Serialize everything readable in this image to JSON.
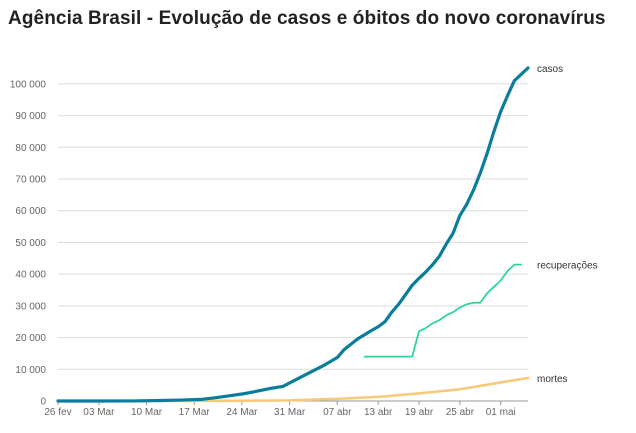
{
  "title": "Agência Brasil - Evolução de casos e óbitos do novo coronavírus",
  "chart_data": {
    "type": "line",
    "title": "Agência Brasil - Evolução de casos e óbitos do novo coronavírus",
    "xlabel": "",
    "ylabel": "",
    "x_start": "2020-02-26",
    "x_end": "2020-05-05",
    "ylim": [
      0,
      105000
    ],
    "grid": true,
    "legend": "inline labels at line ends",
    "y_ticks": [
      0,
      10000,
      20000,
      30000,
      40000,
      50000,
      60000,
      70000,
      80000,
      90000,
      100000
    ],
    "y_tick_labels": [
      "0",
      "10 000",
      "20 000",
      "30 000",
      "40 000",
      "50 000",
      "60 000",
      "70 000",
      "80 000",
      "90 000",
      "100 000"
    ],
    "x_ticks": [
      "2020-02-26",
      "2020-03-03",
      "2020-03-10",
      "2020-03-17",
      "2020-03-24",
      "2020-03-31",
      "2020-04-07",
      "2020-04-13",
      "2020-04-19",
      "2020-04-25",
      "2020-05-01"
    ],
    "x_tick_labels": [
      "26 fev",
      "03 Mar",
      "10 Mar",
      "17 Mar",
      "24 Mar",
      "31 Mar",
      "07 abr",
      "13 abr",
      "19 abr",
      "25 abr",
      "01 mai"
    ],
    "series": [
      {
        "name": "casos",
        "color": "#0a7c9c",
        "x": [
          "2020-02-26",
          "2020-03-03",
          "2020-03-08",
          "2020-03-12",
          "2020-03-15",
          "2020-03-18",
          "2020-03-20",
          "2020-03-22",
          "2020-03-24",
          "2020-03-26",
          "2020-03-28",
          "2020-03-30",
          "2020-04-01",
          "2020-04-03",
          "2020-04-05",
          "2020-04-07",
          "2020-04-08",
          "2020-04-10",
          "2020-04-12",
          "2020-04-13",
          "2020-04-14",
          "2020-04-15",
          "2020-04-16",
          "2020-04-17",
          "2020-04-18",
          "2020-04-19",
          "2020-04-20",
          "2020-04-21",
          "2020-04-22",
          "2020-04-23",
          "2020-04-24",
          "2020-04-25",
          "2020-04-26",
          "2020-04-27",
          "2020-04-28",
          "2020-04-29",
          "2020-04-30",
          "2020-05-01",
          "2020-05-02",
          "2020-05-03",
          "2020-05-04",
          "2020-05-05"
        ],
        "values": [
          0,
          2,
          20,
          150,
          300,
          500,
          1000,
          1600,
          2200,
          3000,
          3900,
          4600,
          6800,
          9000,
          11200,
          13700,
          16200,
          19600,
          22200,
          23400,
          25000,
          28000,
          30500,
          33500,
          36500,
          38700,
          40700,
          43000,
          45700,
          49500,
          52900,
          58500,
          62000,
          66500,
          71900,
          78100,
          85000,
          91300,
          96300,
          101000,
          103000,
          105000
        ]
      },
      {
        "name": "recuperações",
        "color": "#2ed3a3",
        "x": [
          "2020-04-11",
          "2020-04-18",
          "2020-04-19",
          "2020-04-20",
          "2020-04-21",
          "2020-04-22",
          "2020-04-23",
          "2020-04-24",
          "2020-04-25",
          "2020-04-26",
          "2020-04-27",
          "2020-04-28",
          "2020-04-29",
          "2020-04-30",
          "2020-05-01",
          "2020-05-02",
          "2020-05-03",
          "2020-05-04"
        ],
        "values": [
          14000,
          14000,
          22000,
          23000,
          24500,
          25500,
          27000,
          28000,
          29500,
          30500,
          31000,
          31000,
          34000,
          36000,
          38000,
          41000,
          43000,
          43000
        ]
      },
      {
        "name": "mortes",
        "color": "#f8c97a",
        "x": [
          "2020-02-26",
          "2020-03-17",
          "2020-03-24",
          "2020-03-31",
          "2020-04-07",
          "2020-04-13",
          "2020-04-19",
          "2020-04-25",
          "2020-04-30",
          "2020-05-05"
        ],
        "values": [
          0,
          5,
          50,
          200,
          700,
          1300,
          2400,
          3700,
          5500,
          7300
        ]
      }
    ]
  }
}
